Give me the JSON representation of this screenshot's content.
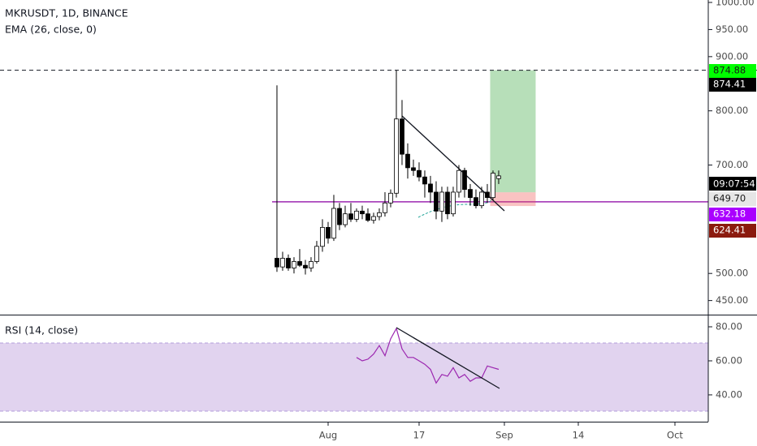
{
  "chart_data": [
    {
      "type": "candlestick",
      "title": "MKRUSDT, 1D, BINANCE",
      "subtitle": "EMA (26, close, 0)",
      "x": [
        -8,
        -7,
        -6,
        -5,
        -4,
        -3,
        -2,
        -1,
        0,
        1,
        2,
        3,
        4,
        5,
        6,
        7,
        8,
        9,
        10,
        11,
        12,
        13,
        14,
        15,
        16,
        17,
        18,
        19,
        20,
        21,
        22,
        23,
        24,
        25,
        26,
        27,
        28,
        29,
        30,
        31
      ],
      "open": [
        528,
        512,
        528,
        510,
        522,
        515,
        510,
        522,
        550,
        585,
        565,
        620,
        590,
        610,
        600,
        615,
        610,
        598,
        605,
        612,
        630,
        648,
        785,
        720,
        695,
        690,
        678,
        665,
        650,
        615,
        650,
        610,
        650,
        690,
        655,
        640,
        625,
        650,
        640,
        675
      ],
      "high": [
        847,
        540,
        535,
        530,
        545,
        525,
        530,
        560,
        600,
        595,
        645,
        630,
        625,
        630,
        620,
        625,
        620,
        612,
        620,
        650,
        655,
        875,
        820,
        740,
        710,
        705,
        690,
        680,
        670,
        660,
        660,
        660,
        700,
        695,
        665,
        655,
        660,
        665,
        690,
        690
      ],
      "low": [
        503,
        505,
        505,
        500,
        512,
        498,
        503,
        518,
        540,
        555,
        560,
        580,
        585,
        595,
        595,
        600,
        595,
        592,
        598,
        605,
        622,
        640,
        700,
        675,
        680,
        670,
        640,
        630,
        600,
        595,
        600,
        605,
        640,
        640,
        625,
        620,
        620,
        630,
        635,
        665
      ],
      "close": [
        512,
        528,
        510,
        522,
        515,
        510,
        522,
        550,
        585,
        565,
        620,
        590,
        610,
        600,
        615,
        610,
        598,
        605,
        612,
        630,
        648,
        785,
        720,
        695,
        690,
        678,
        665,
        650,
        615,
        650,
        610,
        650,
        690,
        655,
        640,
        625,
        650,
        640,
        685,
        680
      ],
      "up_color": "#ffffff",
      "down_color": "#000000",
      "xlim": [
        -56.71,
        67.86
      ],
      "ylim": [
        424,
        1004.5
      ],
      "yticks": [
        {
          "value": 1000,
          "label": "1000.00"
        },
        {
          "value": 950,
          "label": "950.00"
        },
        {
          "value": 900,
          "label": "900.00"
        },
        {
          "value": 800,
          "label": "800.00"
        },
        {
          "value": 700,
          "label": "700.00"
        },
        {
          "value": 500,
          "label": "500.00"
        },
        {
          "value": 450,
          "label": "450.00"
        }
      ],
      "position": {
        "target": 874.88,
        "entry": 649.7,
        "stop": 624.41
      },
      "hline": {
        "value": 632.18,
        "color": "#9c27b0"
      },
      "price_labels": [
        {
          "value": 874.88,
          "label": "874.88",
          "color": "#00ff00",
          "text_color": "#1a1a1a"
        },
        {
          "value": 874.41,
          "label": "874.41",
          "color": "#000000",
          "text_color": "#ffffff"
        },
        {
          "value": 649.7,
          "label": "649.70",
          "color": "#e6e6e6",
          "text_color": "#1a1a1a"
        },
        {
          "value": 632.18,
          "label": "632.18",
          "color": "#aa00ff",
          "text_color": "#ffffff"
        },
        {
          "value": 624.41,
          "label": "624.41",
          "color": "#8b1a0e",
          "text_color": "#ffffff"
        }
      ],
      "countdown": "09:07:54"
    },
    {
      "type": "line",
      "title": "RSI (14, close)",
      "x": [
        6,
        7,
        8,
        9,
        10,
        11,
        12,
        13,
        14,
        15,
        16,
        17,
        18,
        19,
        20,
        21,
        22,
        23,
        24,
        25,
        26,
        27,
        28,
        29,
        30,
        31
      ],
      "values": [
        62,
        60,
        61,
        64,
        69,
        63,
        73,
        79,
        67,
        62,
        62,
        60,
        58,
        55,
        47,
        52,
        51,
        56,
        50,
        52,
        48,
        50,
        50,
        57,
        56,
        55
      ],
      "color": "#9c27b0",
      "xlim": [
        -56.71,
        67.86
      ],
      "ylim": [
        25.2,
        86.2
      ],
      "yticks": [
        {
          "value": 80,
          "label": "80.00"
        },
        {
          "value": 60,
          "label": "60.00"
        },
        {
          "value": 40,
          "label": "40.00"
        }
      ],
      "xticks": [
        {
          "value": 1,
          "label": "Aug"
        },
        17,
        {
          "value": 32,
          "label": "Sep"
        },
        {
          "value": 45,
          "label": "14"
        },
        {
          "value": 62,
          "label": "Oct"
        }
      ]
    }
  ]
}
